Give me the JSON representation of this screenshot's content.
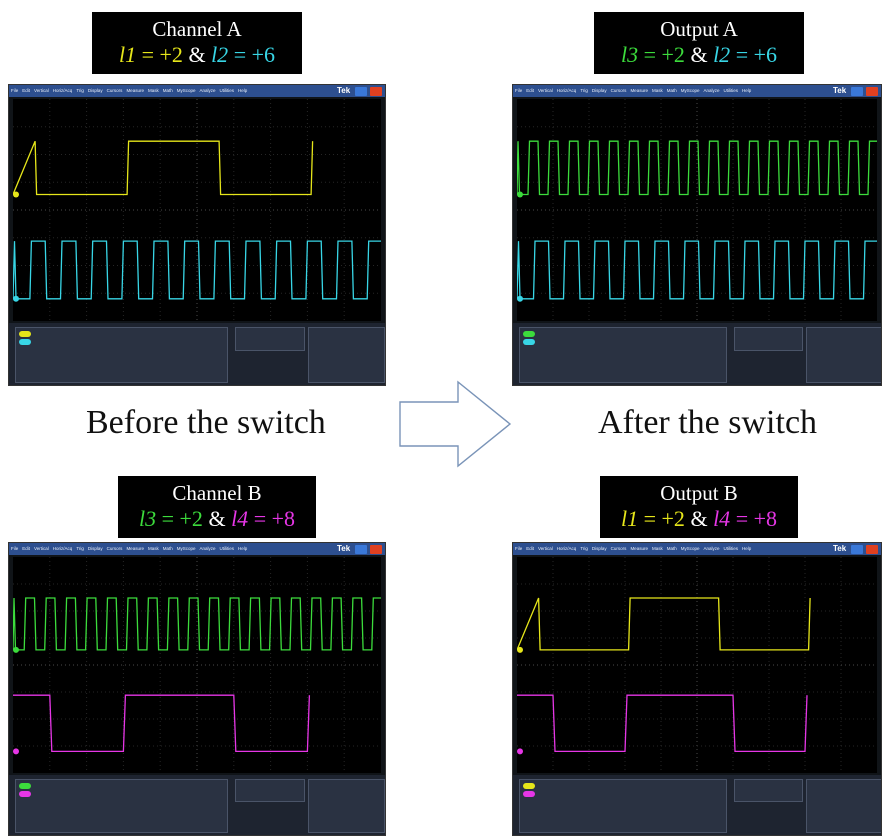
{
  "panels": {
    "top_left": {
      "title": "Channel A",
      "eq": {
        "a_var": "l1",
        "a_val": " = +2",
        "amp": " & ",
        "b_var": "l2",
        "b_val": " = +6"
      },
      "colors": {
        "a": "#e6e61a",
        "b": "#38d6e6"
      },
      "traces": [
        {
          "color": "#e6e61a",
          "periods": 2,
          "duty_start": 0.12,
          "kind": "slow"
        },
        {
          "color": "#38d6e6",
          "periods": 12,
          "kind": "fast"
        }
      ]
    },
    "top_right": {
      "title": "Output A",
      "eq": {
        "a_var": "l3",
        "a_val": " = +2",
        "amp": " & ",
        "b_var": "l2",
        "b_val": " = +6"
      },
      "colors": {
        "a": "#3cdc3c",
        "b": "#38d6e6"
      },
      "traces": [
        {
          "color": "#3cdc3c",
          "periods": 18,
          "kind": "fast"
        },
        {
          "color": "#38d6e6",
          "periods": 12,
          "kind": "fast"
        }
      ]
    },
    "bottom_left": {
      "title": "Channel B",
      "eq": {
        "a_var": "l3",
        "a_val": " = +2",
        "amp": " & ",
        "b_var": "l4",
        "b_val": " = +8"
      },
      "colors": {
        "a": "#3cdc3c",
        "b": "#e636e6"
      },
      "traces": [
        {
          "color": "#3cdc3c",
          "periods": 18,
          "kind": "fast"
        },
        {
          "color": "#e636e6",
          "periods": 2,
          "kind": "slow_b"
        }
      ]
    },
    "bottom_right": {
      "title": "Output B",
      "eq": {
        "a_var": "l1",
        "a_val": " = +2",
        "amp": " & ",
        "b_var": "l4",
        "b_val": " = +8"
      },
      "colors": {
        "a": "#e6e61a",
        "b": "#e636e6"
      },
      "traces": [
        {
          "color": "#e6e61a",
          "periods": 2,
          "kind": "slow"
        },
        {
          "color": "#e636e6",
          "periods": 2,
          "kind": "slow_b"
        }
      ]
    }
  },
  "captions": {
    "before": "Before the switch",
    "after": "After the switch"
  },
  "scope_ui": {
    "menu": [
      "File",
      "Edit",
      "Vertical",
      "Horiz/Acq",
      "Trig",
      "Display",
      "Cursors",
      "Measure",
      "Mask",
      "Math",
      "MyScope",
      "Analyze",
      "Utilities",
      "Help"
    ],
    "brand": "Tek",
    "colors": {
      "menubar": "#2d4f8f",
      "close": "#e04020",
      "min": "#3a78d8"
    }
  }
}
